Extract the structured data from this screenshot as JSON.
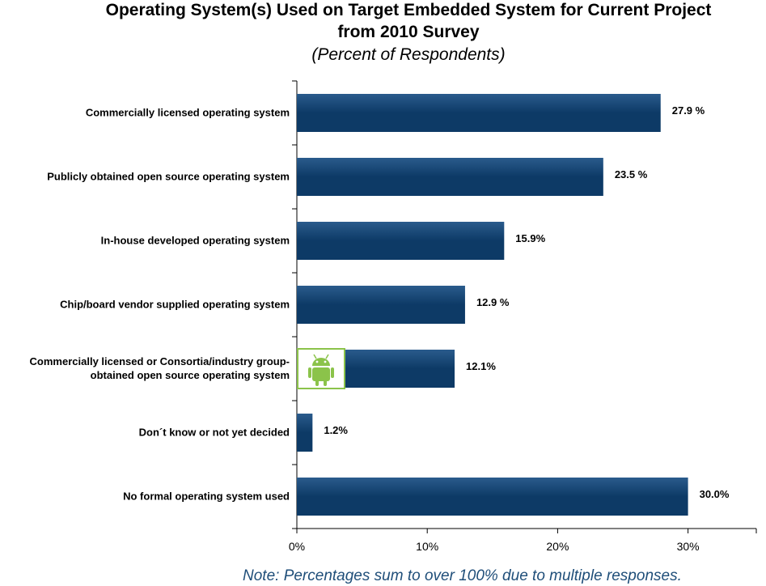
{
  "chart_data": {
    "type": "bar",
    "orientation": "horizontal",
    "title": "Operating System(s) Used on Target Embedded System for Current Project",
    "title_line2": "from 2010 Survey",
    "subtitle": "(Percent of Respondents)",
    "categories": [
      [
        "Commercially licensed operating system"
      ],
      [
        "Publicly obtained open source operating system"
      ],
      [
        "In-house developed operating system"
      ],
      [
        "Chip/board vendor supplied operating system"
      ],
      [
        "Commercially licensed or Consortia/industry group-",
        "obtained open source operating system"
      ],
      [
        "Don´t know or not yet decided"
      ],
      [
        "No formal operating system used"
      ]
    ],
    "values": [
      27.9,
      23.5,
      15.9,
      12.9,
      12.1,
      1.2,
      30.0
    ],
    "value_labels": [
      "27.9 %",
      "23.5 %",
      "15.9%",
      "12.9 %",
      "12.1%",
      "1.2%",
      "30.0%"
    ],
    "x_ticks": [
      0,
      10,
      20,
      30
    ],
    "x_tick_labels": [
      "0%",
      "10%",
      "20%",
      "30%"
    ],
    "xlim": [
      0,
      35
    ],
    "grid": false,
    "legend": "none",
    "bar_color": "#0d3a66",
    "bar_color_light": "#2a5b8c",
    "android_icon_color": "#8bc34a",
    "android_icon_category_index": 4
  },
  "note": "Note: Percentages sum to over 100% due to multiple responses."
}
